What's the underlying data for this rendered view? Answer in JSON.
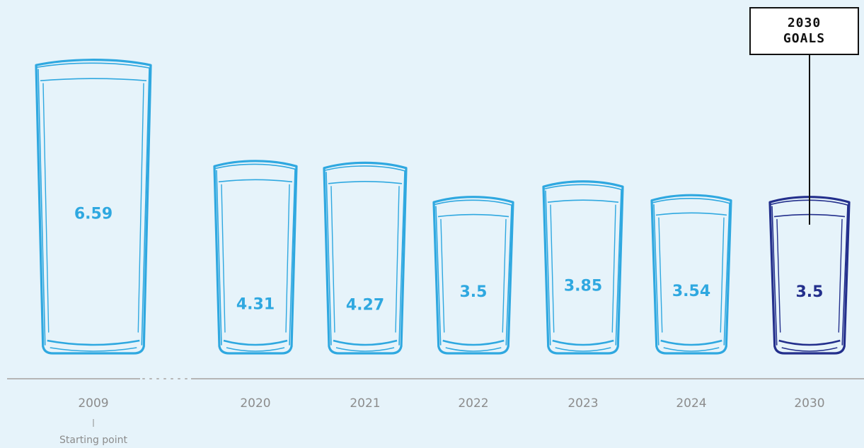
{
  "chart_data": {
    "type": "bar",
    "style": "glasses",
    "categories": [
      "2009",
      "2020",
      "2021",
      "2022",
      "2023",
      "2024",
      "2030"
    ],
    "values": [
      6.59,
      4.31,
      4.27,
      3.5,
      3.85,
      3.54,
      3.5
    ],
    "value_labels": [
      "6.59",
      "4.31",
      "4.27",
      "3.5",
      "3.85",
      "3.54",
      "3.5"
    ],
    "highlight_index": 6,
    "axis_break_after_index": 0,
    "annotations": {
      "start_label": "Starting point",
      "goal_line1": "2030",
      "goal_line2": "GOALS"
    },
    "title": "",
    "xlabel": "",
    "ylabel": "",
    "grid": false
  },
  "colors": {
    "background": "#e6f3fa",
    "glass": "#2fa8e0",
    "goal_glass": "#232f8c",
    "axis": "#b5b5b5",
    "year_text": "#8c8c8c",
    "goal_border": "#111111"
  }
}
